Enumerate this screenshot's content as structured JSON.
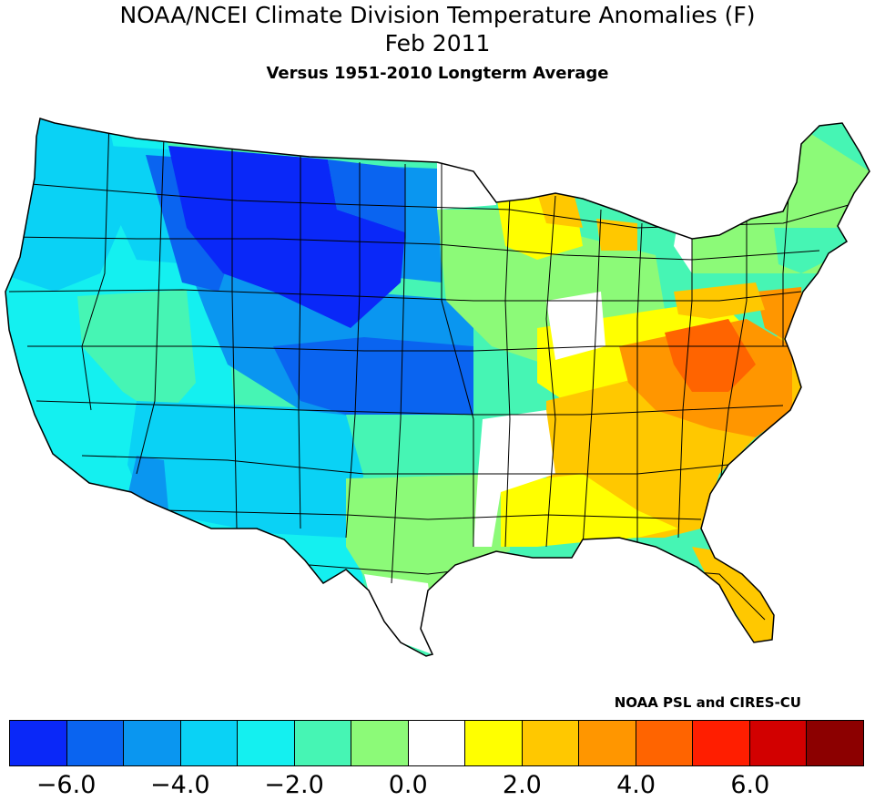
{
  "title": {
    "line1": "NOAA/NCEI Climate Division Temperature Anomalies (F)",
    "line2": "Feb 2011",
    "line3": "Versus 1951-2010 Longterm Average"
  },
  "credit": "NOAA PSL and CIRES-CU",
  "colors": {
    "bins": [
      "#0a28f8",
      "#0a64f0",
      "#0a96f0",
      "#0ad2f5",
      "#14f0f0",
      "#46f5b4",
      "#8cfa78",
      "#ffffff",
      "#ffff00",
      "#ffc800",
      "#ff9600",
      "#ff6400",
      "#ff1e00",
      "#d20000",
      "#8c0000"
    ],
    "border": "#000000"
  },
  "legend": {
    "tick_labels": [
      "-6.0",
      "-4.0",
      "-2.0",
      "0.0",
      "2.0",
      "4.0",
      "6.0"
    ]
  },
  "regions": [
    {
      "name": "Pacific Northwest coast",
      "anomaly": -3.0
    },
    {
      "name": "Northern Rockies / Montana-Wyoming",
      "anomaly": -6.5
    },
    {
      "name": "Northern Plains (Dakotas)",
      "anomaly": -4.5
    },
    {
      "name": "Nevada / Great Basin",
      "anomaly": -1.5
    },
    {
      "name": "Colorado / Kansas",
      "anomaly": -3.5
    },
    {
      "name": "California",
      "anomaly": -2.5
    },
    {
      "name": "Arizona / New Mexico",
      "anomaly": -2.5
    },
    {
      "name": "Texas",
      "anomaly": -0.8
    },
    {
      "name": "Upper Midwest",
      "anomaly": -1.2
    },
    {
      "name": "Michigan / Wisconsin",
      "anomaly": 1.2
    },
    {
      "name": "Northeast / New England",
      "anomaly": -1.2
    },
    {
      "name": "Gulf Coast / Mississippi",
      "anomaly": 1.5
    },
    {
      "name": "Southeast / Georgia-Carolinas",
      "anomaly": 3.0
    },
    {
      "name": "Appalachians / Virginia",
      "anomaly": 4.0
    },
    {
      "name": "Florida",
      "anomaly": 3.0
    }
  ]
}
